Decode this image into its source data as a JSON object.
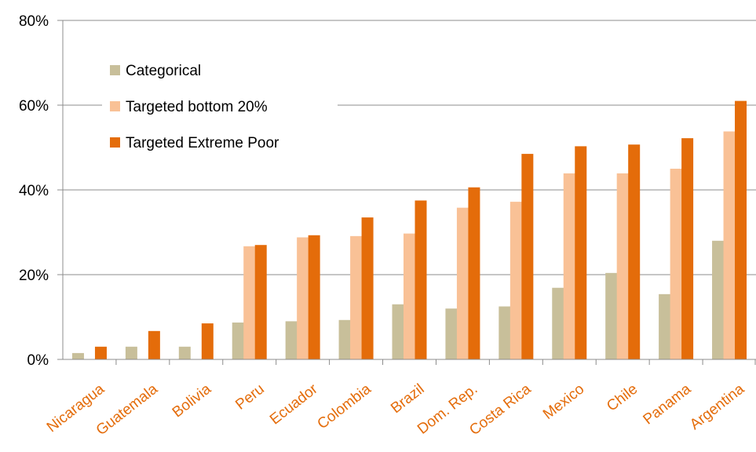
{
  "chart_data": {
    "type": "bar",
    "categories": [
      "Nicaragua",
      "Guatemala",
      "Bolivia",
      "Peru",
      "Ecuador",
      "Colombia",
      "Brazil",
      "Dom. Rep.",
      "Costa Rica",
      "Mexico",
      "Chile",
      "Panama",
      "Argentina"
    ],
    "series": [
      {
        "name": "Categorical",
        "color": "#c8bf9a",
        "values": [
          1.5,
          3.0,
          3.0,
          8.7,
          9.0,
          9.3,
          13.0,
          12.0,
          12.5,
          16.9,
          20.4,
          15.4,
          28.0
        ]
      },
      {
        "name": "Targeted bottom 20%",
        "color": "#f9c196",
        "values": [
          0,
          0,
          0,
          26.7,
          28.8,
          29.1,
          29.7,
          35.8,
          37.2,
          43.9,
          43.9,
          45.0,
          53.8
        ]
      },
      {
        "name": "Targeted Extreme Poor",
        "color": "#e46c0a",
        "values": [
          3.0,
          6.7,
          8.5,
          27.0,
          29.3,
          33.5,
          37.5,
          40.6,
          48.5,
          50.3,
          50.7,
          52.2,
          61.0
        ]
      }
    ],
    "yticks": [
      "0%",
      "20%",
      "40%",
      "60%",
      "80%"
    ],
    "ylim": [
      0,
      80
    ],
    "ygrid": true,
    "legend_position": "top-left",
    "category_label_color": "#e46c0a"
  }
}
